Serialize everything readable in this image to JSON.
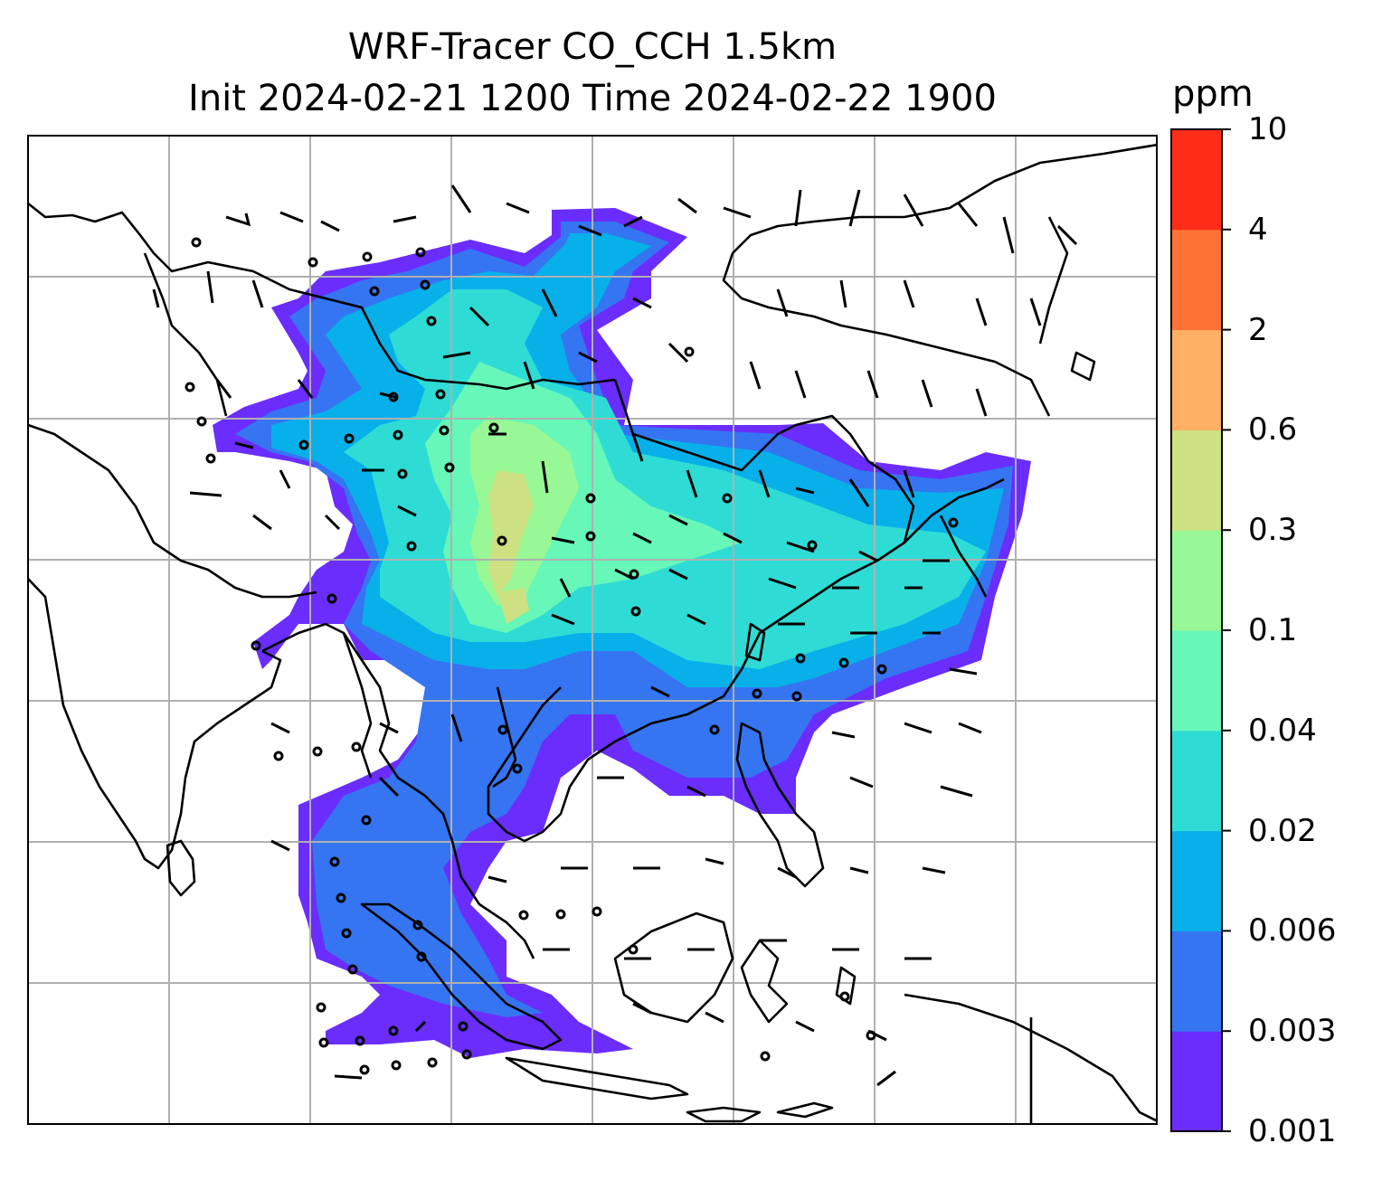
{
  "title": {
    "line1": "WRF-Tracer CO_CCH 1.5km",
    "line2": "Init 2024-02-21 1200 Time 2024-02-22 1900"
  },
  "colorbar": {
    "unit": "ppm",
    "ticks": [
      "0.001",
      "0.003",
      "0.006",
      "0.02",
      "0.04",
      "0.1",
      "0.3",
      "0.6",
      "2",
      "4",
      "10"
    ],
    "colors": [
      "#6a2dfc",
      "#3575f2",
      "#08b0ea",
      "#2fdcd5",
      "#67f7b8",
      "#98f895",
      "#cde082",
      "#feb064",
      "#fe7236",
      "#ff2d17"
    ]
  },
  "map": {
    "field": "CO_CCH",
    "level": "1.5km",
    "gridlines": true,
    "wind_barbs": true,
    "coastlines": true
  }
}
